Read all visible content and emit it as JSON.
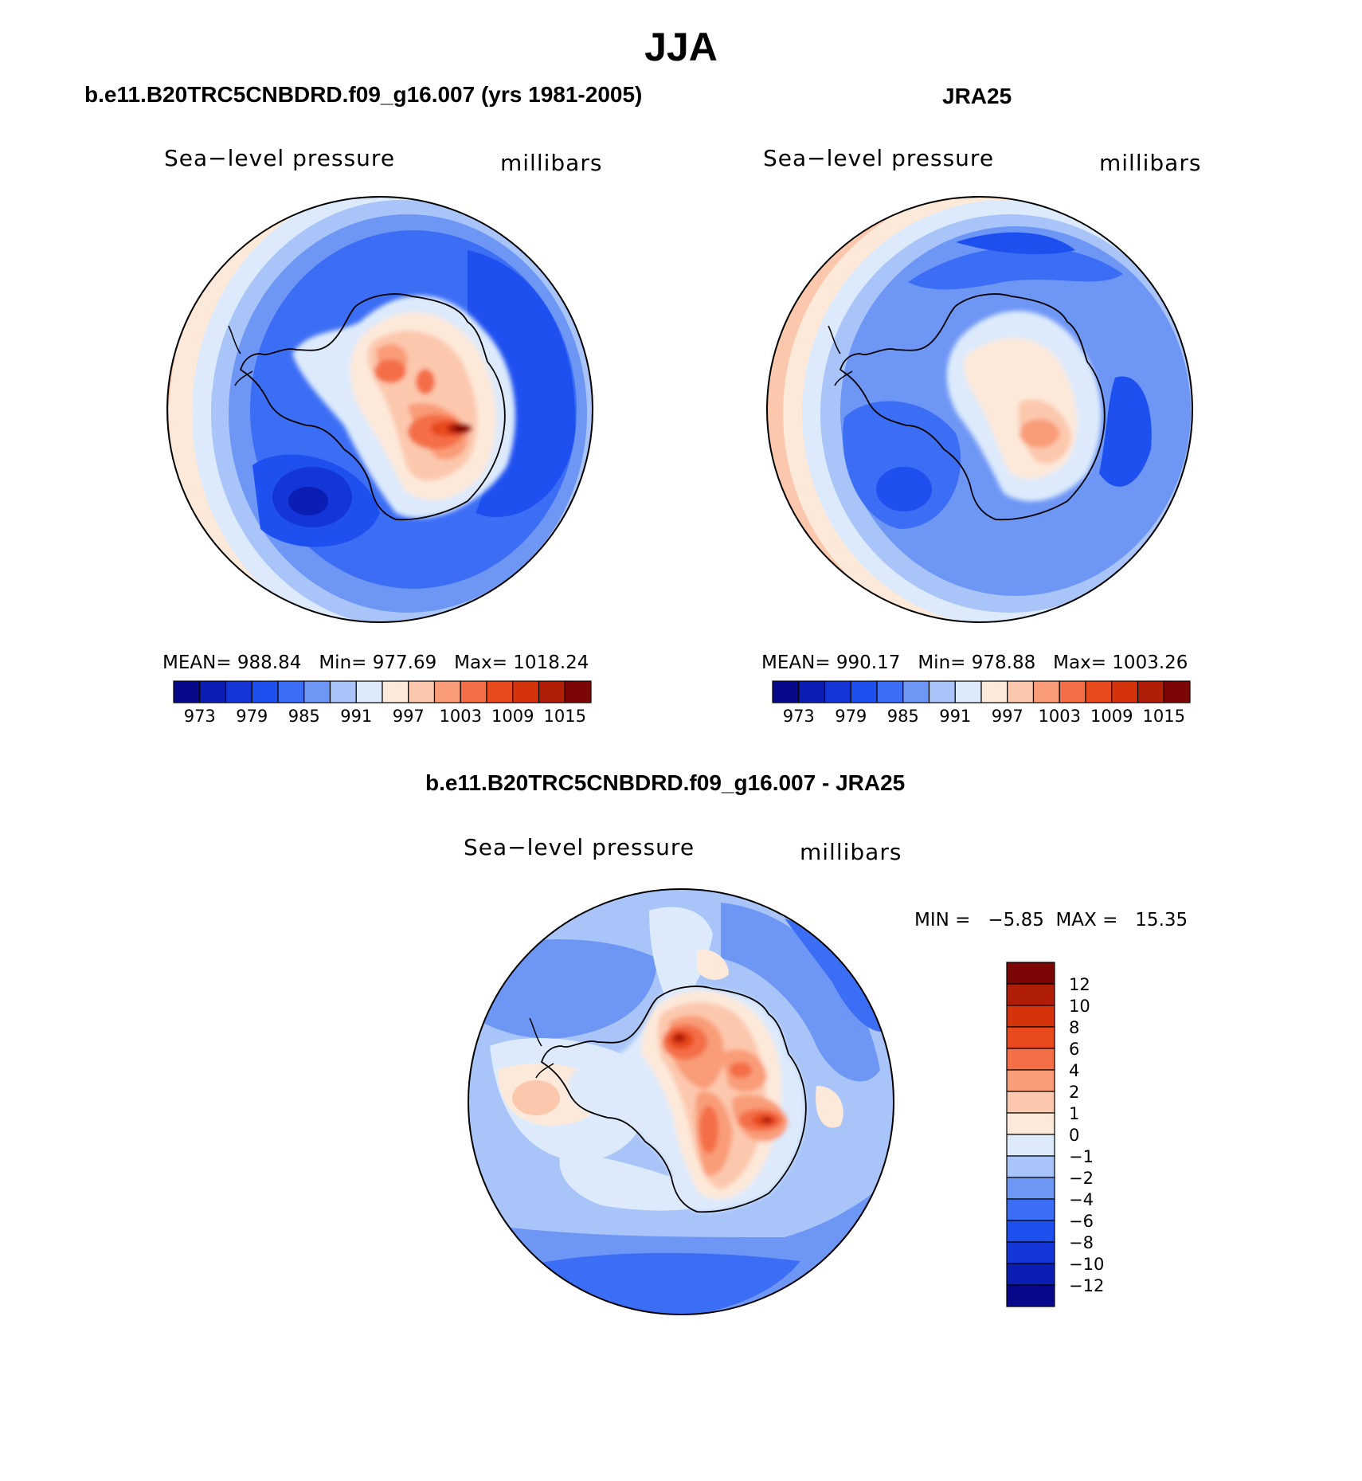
{
  "figure": {
    "title": "JJA",
    "panel_left_title": "b.e11.B20TRC5CNBDRD.f09_g16.007 (yrs 1981-2005)",
    "panel_right_title": "JRA25",
    "panel_diff_title": "b.e11.B20TRC5CNBDRD.f09_g16.007 - JRA25"
  },
  "panels": {
    "model": {
      "field": "Sea−level pressure",
      "units": "millibars",
      "mean_label": "MEAN=",
      "mean": "988.84",
      "min_label": "Min=",
      "min": "977.69",
      "max_label": "Max=",
      "max": "1018.24"
    },
    "obs": {
      "field": "Sea−level pressure",
      "units": "millibars",
      "mean_label": "MEAN=",
      "mean": "990.17",
      "min_label": "Min=",
      "min": "978.88",
      "max_label": "Max=",
      "max": "1003.26"
    },
    "diff": {
      "field": "Sea−level pressure",
      "units": "millibars",
      "minmax_text": "MIN =   −5.85  MAX =   15.35"
    }
  },
  "chart_data": [
    {
      "type": "heatmap",
      "title": "b.e11.B20TRC5CNBDRD.f09_g16.007 (yrs 1981-2005)",
      "variable": "Sea-level pressure",
      "units": "millibars",
      "projection": "south polar stereographic",
      "mean": 988.84,
      "min": 977.69,
      "max": 1018.24,
      "colorbar_ticks": [
        "973",
        "979",
        "985",
        "991",
        "997",
        "1003",
        "1009",
        "1015"
      ],
      "colorbar_orientation": "horizontal"
    },
    {
      "type": "heatmap",
      "title": "JRA25",
      "variable": "Sea-level pressure",
      "units": "millibars",
      "projection": "south polar stereographic",
      "mean": 990.17,
      "min": 978.88,
      "max": 1003.26,
      "colorbar_ticks": [
        "973",
        "979",
        "985",
        "991",
        "997",
        "1003",
        "1009",
        "1015"
      ],
      "colorbar_orientation": "horizontal"
    },
    {
      "type": "heatmap",
      "title": "b.e11.B20TRC5CNBDRD.f09_g16.007 - JRA25",
      "variable": "Sea-level pressure difference",
      "units": "millibars",
      "projection": "south polar stereographic",
      "min": -5.85,
      "max": 15.35,
      "colorbar_ticks": [
        "12",
        "10",
        "8",
        "6",
        "4",
        "2",
        "1",
        "0",
        "−1",
        "−2",
        "−4",
        "−6",
        "−8",
        "−10",
        "−12"
      ],
      "colorbar_orientation": "vertical"
    }
  ],
  "colors": {
    "abs_palette": [
      "#08088a",
      "#0a1eb4",
      "#1436d8",
      "#1e50f0",
      "#3c6ef5",
      "#6e96f5",
      "#a8c4f8",
      "#dceafc",
      "#fde9da",
      "#fcc8ad",
      "#f99c78",
      "#f46e46",
      "#e84a1e",
      "#d4330c",
      "#b01e08",
      "#7c0606"
    ],
    "diff_palette": [
      "#7c0606",
      "#b01e08",
      "#d4330c",
      "#e84a1e",
      "#f46e46",
      "#f99c78",
      "#fcc8ad",
      "#fde9da",
      "#dceafc",
      "#a8c4f8",
      "#6e96f5",
      "#3c6ef5",
      "#1e50f0",
      "#1436d8",
      "#0a1eb4",
      "#08088a"
    ],
    "coastline": "#000000"
  }
}
